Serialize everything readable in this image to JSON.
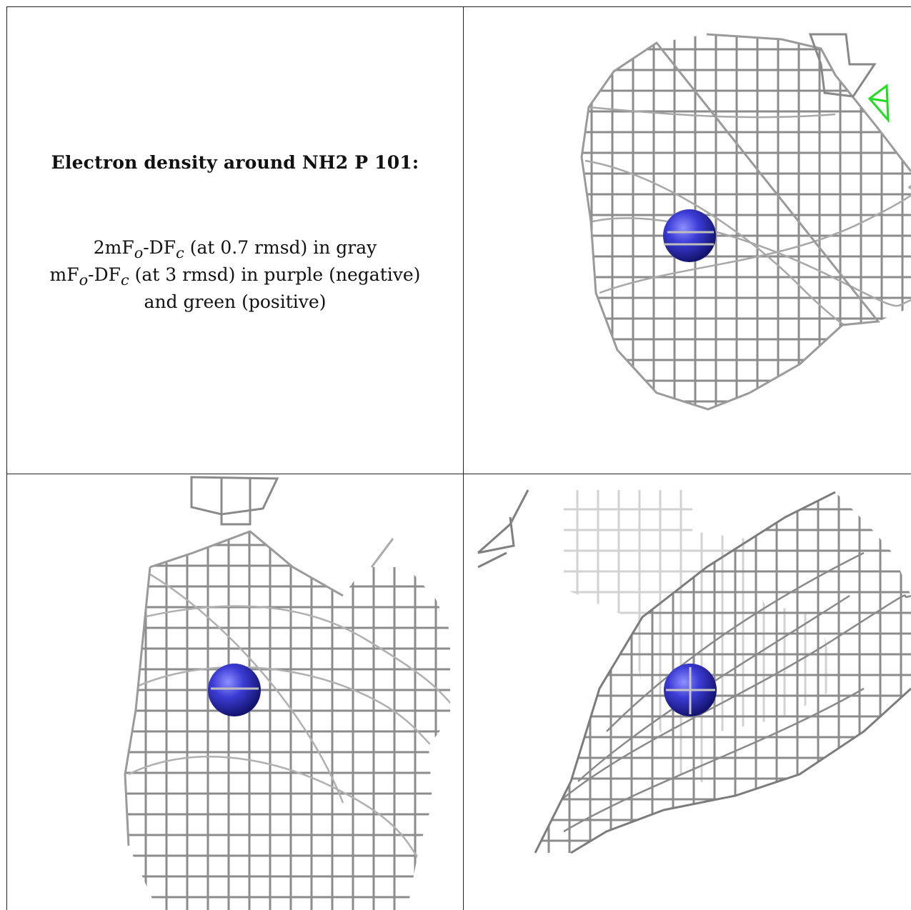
{
  "caption": {
    "title": "Electron density around NH2 P 101:",
    "line1": {
      "a": "2mF",
      "b": "o",
      "c": "-DF",
      "d": "c",
      "e": " (at 0.7 rmsd) in gray"
    },
    "line2": {
      "a": "mF",
      "b": "o",
      "c": "-DF",
      "d": "c",
      "e": " (at 3 rmsd) in purple (negative)"
    },
    "line3": "and green (positive)"
  },
  "colors": {
    "mesh_gray": "#8c8c8c",
    "mesh_light": "#d2d2d2",
    "positive": "#22dd22",
    "negative": "#8a3fd0",
    "atom": "#3a3ad0"
  },
  "views": [
    {
      "id": "view-top-right",
      "atom": "nitrogen-sphere",
      "positive_density": true
    },
    {
      "id": "view-bottom-left",
      "atom": "nitrogen-sphere",
      "positive_density": false
    },
    {
      "id": "view-bottom-right",
      "atom": "nitrogen-sphere",
      "positive_density": false
    }
  ]
}
